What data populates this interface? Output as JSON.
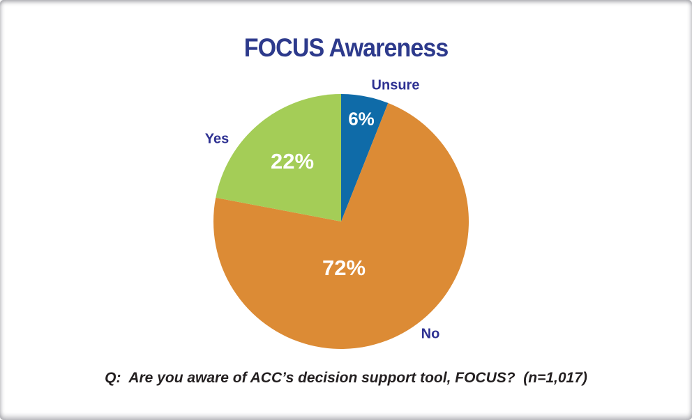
{
  "page": {
    "title": "FOCUS Awareness",
    "caption": "Q:  Are you aware of ACC’s decision support tool, FOCUS?  (n=1,017)"
  },
  "chart_data": {
    "type": "pie",
    "title": "FOCUS Awareness",
    "start_angle_deg": 0,
    "direction": "clockwise",
    "total": 100,
    "slices": [
      {
        "label": "Unsure",
        "value": 6,
        "value_label": "6%",
        "color": "#0F6BA8"
      },
      {
        "label": "No",
        "value": 72,
        "value_label": "72%",
        "color": "#DC8B35"
      },
      {
        "label": "Yes",
        "value": 22,
        "value_label": "22%",
        "color": "#A4CD57"
      }
    ],
    "label_color": "#2E3192",
    "value_label_color": "#FFFFFF",
    "footnote": "Q:  Are you aware of ACC’s decision support tool, FOCUS?  (n=1,017)",
    "legend": "none"
  }
}
